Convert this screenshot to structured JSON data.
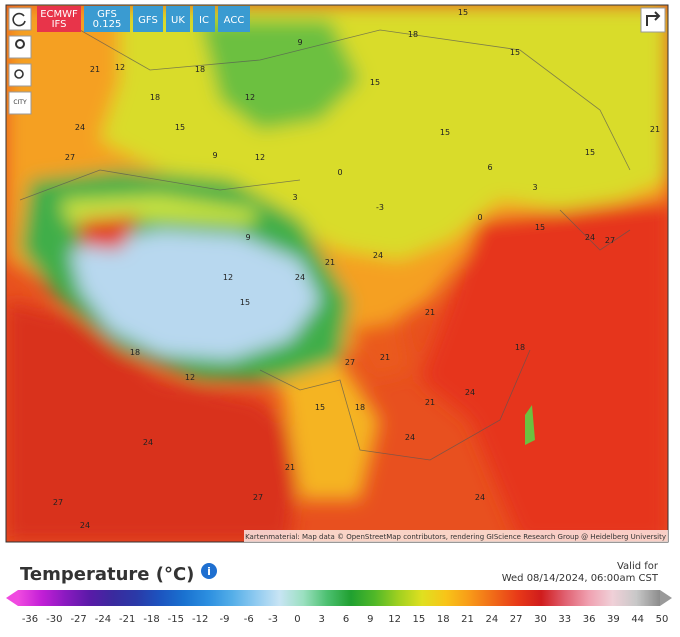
{
  "models": [
    "ECMWF IFS",
    "GFS 0.125",
    "GFS",
    "UK",
    "IC",
    "ACC"
  ],
  "city_button": "CITY",
  "map_labels": [
    "15",
    "18",
    "15",
    "12",
    "9",
    "21",
    "18",
    "15",
    "12",
    "15",
    "21",
    "24",
    "27",
    "18",
    "15",
    "12",
    "9",
    "6",
    "3",
    "0",
    "-3",
    "0",
    "3",
    "9",
    "12",
    "15",
    "18",
    "21",
    "24",
    "27",
    "24",
    "21",
    "18",
    "15",
    "24",
    "27",
    "24",
    "21",
    "15",
    "18",
    "24",
    "27",
    "21",
    "24",
    "24",
    "27",
    "24",
    "15",
    "12",
    "21"
  ],
  "attribution": "Kartenmaterial: Map data © OpenStreetMap contributors, rendering GIScience Research Group @ Heidelberg University",
  "legend": {
    "title": "Temperature (°C)",
    "valid_label": "Valid for",
    "valid_time": "Wed 08/14/2024, 06:00am CST",
    "ticks": [
      "-36",
      "-30",
      "-27",
      "-24",
      "-21",
      "-18",
      "-15",
      "-12",
      "-9",
      "-6",
      "-3",
      "0",
      "3",
      "6",
      "9",
      "12",
      "15",
      "18",
      "21",
      "24",
      "27",
      "30",
      "33",
      "36",
      "39",
      "44",
      "50"
    ]
  }
}
